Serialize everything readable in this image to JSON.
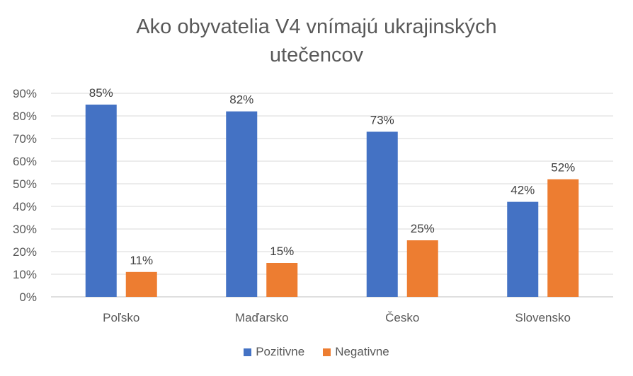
{
  "chart_data": {
    "type": "bar",
    "title_line1": "Ako obyvatelia V4 vnímajú ukrajinských",
    "title_line2": "utečencov",
    "categories": [
      "Poľsko",
      "Maďarsko",
      "Česko",
      "Slovensko"
    ],
    "series": [
      {
        "name": "Pozitivne",
        "color": "#4472c4",
        "values": [
          85,
          82,
          73,
          42
        ]
      },
      {
        "name": "Negativne",
        "color": "#ed7d31",
        "values": [
          11,
          15,
          25,
          52
        ]
      }
    ],
    "y_ticks": [
      "0%",
      "10%",
      "20%",
      "30%",
      "40%",
      "50%",
      "60%",
      "70%",
      "80%",
      "90%"
    ],
    "ylim": [
      0,
      90
    ],
    "value_suffix": "%",
    "grid": true,
    "legend_position": "bottom"
  }
}
